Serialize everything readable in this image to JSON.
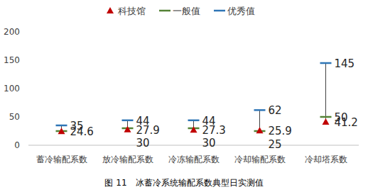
{
  "chart_data": {
    "type": "range_marker",
    "title": "图 11　冰蓄冷系统输配系数典型日实测值",
    "categories": [
      "蓄冷输配系数",
      "放冷输配系数",
      "冷冻输配系数",
      "冷却输配系数",
      "冷却塔系数"
    ],
    "series": [
      {
        "name": "科技馆",
        "color": "#c00000",
        "marker": "triangle",
        "values": [
          24.6,
          27.9,
          27.3,
          25.9,
          41.2
        ]
      },
      {
        "name": "一般值",
        "color": "#548235",
        "marker": "dash",
        "values": [
          25,
          30,
          30,
          25,
          50
        ],
        "value_labels": [
          null,
          "30",
          "30",
          "25",
          "50"
        ]
      },
      {
        "name": "优秀值",
        "color": "#2e75b6",
        "marker": "dash",
        "values": [
          35,
          44,
          44,
          62,
          145
        ]
      }
    ],
    "ylim": [
      0,
      200
    ],
    "yticks": [
      0,
      50,
      100,
      150,
      200
    ],
    "grid": false,
    "legend": "top",
    "data_labels": true
  }
}
